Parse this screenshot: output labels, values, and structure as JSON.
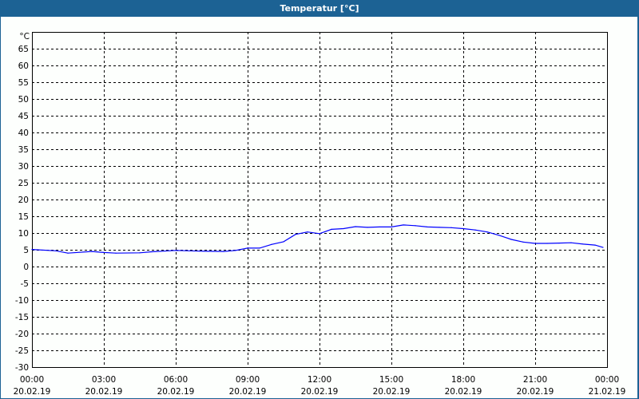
{
  "window": {
    "title": "Temperatur [°C]",
    "title_bar_color": "#1c6294"
  },
  "chart_data": {
    "type": "line",
    "title": "Temperatur [°C]",
    "ylabel": "°C",
    "ylim": [
      -30,
      70
    ],
    "yticks": [
      65,
      60,
      55,
      50,
      45,
      40,
      35,
      30,
      25,
      20,
      15,
      10,
      5,
      0,
      -5,
      -10,
      -15,
      -20,
      -25,
      -30
    ],
    "xlim": [
      "20.02.19 00:00",
      "21.02.19 00:00"
    ],
    "xticks": [
      {
        "time": "00:00",
        "date": "20.02.19"
      },
      {
        "time": "03:00",
        "date": "20.02.19"
      },
      {
        "time": "06:00",
        "date": "20.02.19"
      },
      {
        "time": "09:00",
        "date": "20.02.19"
      },
      {
        "time": "12:00",
        "date": "20.02.19"
      },
      {
        "time": "15:00",
        "date": "20.02.19"
      },
      {
        "time": "18:00",
        "date": "20.02.19"
      },
      {
        "time": "21:00",
        "date": "20.02.19"
      },
      {
        "time": "00:00",
        "date": "21.02.19"
      }
    ],
    "grid": true,
    "line_color": "#0000ff",
    "series": [
      {
        "x": [
          "00:00",
          "01:00",
          "01:30",
          "02:30",
          "03:00",
          "03:30",
          "04:30",
          "05:00",
          "06:00",
          "07:00",
          "08:00",
          "08:30",
          "09:00",
          "09:30",
          "10:00",
          "10:30",
          "11:00",
          "11:30",
          "12:00",
          "12:30",
          "13:00",
          "13:30",
          "14:00",
          "14:30",
          "15:00",
          "15:30",
          "16:00",
          "16:30",
          "17:00",
          "17:30",
          "18:00",
          "18:30",
          "19:00",
          "19:30",
          "20:00",
          "20:30",
          "21:00",
          "21:30",
          "22:00",
          "22:30",
          "23:00",
          "23:30",
          "23:50"
        ],
        "y": [
          5.1,
          4.7,
          4.0,
          4.5,
          4.2,
          4.0,
          4.1,
          4.4,
          4.8,
          4.6,
          4.5,
          4.8,
          5.5,
          5.5,
          6.6,
          7.4,
          9.6,
          10.3,
          9.8,
          11.1,
          11.3,
          11.9,
          11.7,
          11.8,
          11.8,
          12.4,
          12.2,
          11.8,
          11.7,
          11.6,
          11.3,
          10.9,
          10.3,
          9.3,
          8.1,
          7.3,
          6.9,
          6.9,
          7.0,
          7.1,
          6.7,
          6.4,
          5.7
        ]
      }
    ]
  }
}
